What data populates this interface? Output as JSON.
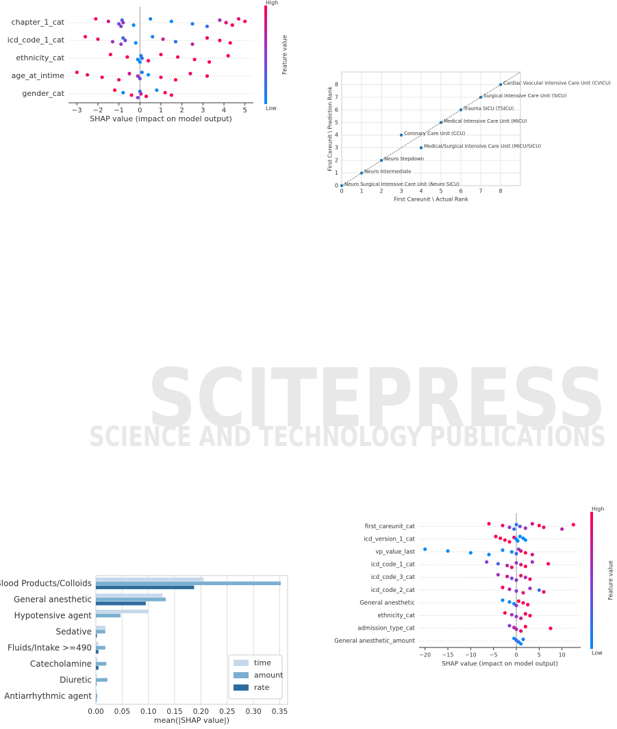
{
  "watermark": {
    "title": "SCITEPRESS",
    "subtitle": "SCIENCE AND TECHNOLOGY PUBLICATIONS"
  },
  "chart_data": [
    {
      "type": "beeswarm",
      "xlabel": "SHAP value (impact on model output)",
      "xlim": [
        -3.4,
        5.4
      ],
      "xticks": [
        {
          "value": -3,
          "label": "−3"
        },
        {
          "value": -2,
          "label": "−2"
        },
        {
          "value": -1,
          "label": "−1"
        },
        0,
        1,
        2,
        3,
        4,
        5
      ],
      "colors": {
        "low": "#008bfb",
        "high": "#ff0052"
      },
      "colorbar": {
        "high": "High",
        "low": "Low",
        "label": "Feature value"
      },
      "features": [
        {
          "name": "chapter_1_cat",
          "shap": [
            -2.1,
            -1.5,
            -1.0,
            -0.9,
            -0.85,
            -0.8,
            -0.3,
            0.5,
            1.5,
            2.5,
            3.2,
            3.8,
            4.1,
            4.4,
            4.7,
            5.0
          ],
          "feature_value": [
            1,
            0.8,
            0.4,
            0.5,
            0.3,
            0.6,
            0,
            0.1,
            0,
            0.1,
            0.2,
            0.6,
            0.9,
            1,
            0.9,
            1
          ]
        },
        {
          "name": "icd_code_1_cat",
          "shap": [
            -2.6,
            -2.0,
            -1.3,
            -0.9,
            -0.8,
            -0.7,
            -0.2,
            0.6,
            1.1,
            1.7,
            2.5,
            3.2,
            3.8,
            4.3
          ],
          "feature_value": [
            1,
            0.9,
            0.6,
            0.5,
            0.2,
            0.4,
            0,
            0.1,
            0.8,
            0.2,
            0.7,
            0.9,
            1,
            1
          ]
        },
        {
          "name": "ethnicity_cat",
          "shap": [
            -1.4,
            -0.6,
            -0.1,
            0,
            0.05,
            0.1,
            0.4,
            1.0,
            1.8,
            2.6,
            3.3,
            4.2
          ],
          "feature_value": [
            1,
            1,
            0,
            0,
            0.1,
            0.2,
            1,
            1,
            0.9,
            1,
            1,
            1
          ]
        },
        {
          "name": "age_at_intime",
          "shap": [
            -3.0,
            -2.5,
            -1.8,
            -1.0,
            -0.5,
            -0.1,
            0,
            0.1,
            0.4,
            1.0,
            1.7,
            2.4,
            3.2
          ],
          "feature_value": [
            1,
            0.9,
            1,
            0.9,
            0.8,
            0.6,
            0.4,
            0.1,
            0,
            0.9,
            1,
            0.9,
            1
          ]
        },
        {
          "name": "gender_cat",
          "shap": [
            -1.2,
            -0.8,
            -0.4,
            -0.1,
            0,
            0.05,
            0.3,
            0.8,
            1.2,
            1.5
          ],
          "feature_value": [
            1,
            0,
            1,
            0.5,
            0.2,
            0.7,
            1,
            0,
            1,
            1
          ]
        }
      ]
    },
    {
      "type": "scatter",
      "xlabel": "First Careunit \\ Actual Rank",
      "ylabel": "First Careunit \\ Prediction Rank",
      "xlim": [
        0,
        9
      ],
      "ylim": [
        0,
        9
      ],
      "xticks": [
        0,
        1,
        2,
        3,
        4,
        5,
        6,
        7,
        8
      ],
      "yticks": [
        0,
        1,
        2,
        3,
        4,
        5,
        6,
        7,
        8
      ],
      "grid": true,
      "color": "#1f77b4",
      "x": [
        8,
        7,
        6,
        5,
        3,
        4,
        2,
        1,
        0
      ],
      "values": [
        8,
        7,
        6,
        5,
        4,
        3,
        2,
        1,
        0
      ],
      "point_labels": [
        "Cardiac Vascular Intensive Care Unit (CVICU)",
        "Surgical Intensive Care Unit (SICU)",
        "Trauma SICU (TSICU)",
        "Medical Intensive Care Unit (MICU)",
        "Coronary Care Unit (CCU)",
        "Medical/Surgical Intensive Care Unit (MICU/SICU)",
        "Neuro Stepdown",
        "Neuro Intermediate",
        "Neuro Surgical Intensive Care Unit (Neuro SICU)"
      ]
    },
    {
      "type": "bar",
      "xlabel": "mean(|SHAP value|)",
      "xlim": [
        0,
        0.365
      ],
      "xticks": [
        {
          "value": 0,
          "label": "0.00"
        },
        0.05,
        {
          "value": 0.1,
          "label": "0.10"
        },
        0.15,
        {
          "value": 0.2,
          "label": "0.20"
        },
        0.25,
        {
          "value": 0.3,
          "label": "0.30"
        },
        0.35
      ],
      "grid": true,
      "legend": "lower right",
      "categories": [
        "Blood Products/Colloids",
        "General anesthetic",
        "Hypotensive agent",
        "Sedative",
        "Fluids/Intake >=490",
        "Catecholamine",
        "Diuretic",
        "Antiarrhythmic agent"
      ],
      "series": [
        {
          "name": "time",
          "color": "#c6d9ea",
          "values": [
            0.205,
            0.127,
            0.1,
            0.018,
            0.005,
            0.003,
            0.002,
            0.002
          ]
        },
        {
          "name": "amount",
          "color": "#7bafd0",
          "values": [
            0.352,
            0.133,
            0.047,
            0.018,
            0.018,
            0.02,
            0.022,
            0.003
          ]
        },
        {
          "name": "rate",
          "color": "#2f6c9e",
          "values": [
            0.187,
            0.095,
            0,
            0.002,
            0.005,
            0.005,
            0.001,
            0.001
          ]
        }
      ]
    },
    {
      "type": "beeswarm",
      "xlabel": "SHAP value (impact on model output)",
      "xlim": [
        -21.3,
        14.1
      ],
      "xticks": [
        {
          "value": -20,
          "label": "−20"
        },
        {
          "value": -15,
          "label": "−15"
        },
        {
          "value": -10,
          "label": "−10"
        },
        {
          "value": -5,
          "label": "−5"
        },
        0,
        5,
        10
      ],
      "colors": {
        "low": "#008bfb",
        "high": "#ff0052"
      },
      "colorbar": {
        "high": "High",
        "low": "Low",
        "label": "Feature value"
      },
      "features": [
        {
          "name": "first_careunit_cat",
          "shap": [
            -6,
            -3,
            -1.5,
            -0.5,
            0,
            0.8,
            2,
            3.5,
            5,
            6,
            10,
            12.5
          ],
          "feature_value": [
            1,
            0.9,
            0.5,
            0.2,
            0.1,
            0.4,
            0.6,
            0.8,
            1,
            0.9,
            0.7,
            1
          ]
        },
        {
          "name": "icd_version_1_cat",
          "shap": [
            -4.5,
            -3.5,
            -2.5,
            -1.5,
            -0.5,
            0,
            0.3,
            0.8,
            1.5,
            2.0
          ],
          "feature_value": [
            1,
            1,
            1,
            1,
            0.9,
            0,
            0,
            0,
            0,
            0
          ]
        },
        {
          "name": "vp_value_last",
          "shap": [
            -20,
            -15,
            -10,
            -6,
            -3,
            -1,
            0,
            0.5,
            1,
            2,
            3.5
          ],
          "feature_value": [
            0,
            0,
            0,
            0,
            0,
            0,
            0.2,
            0.5,
            0.9,
            1,
            0.8
          ]
        },
        {
          "name": "icd_code_1_cat",
          "shap": [
            -6.5,
            -4,
            -2,
            -1,
            0,
            1,
            2,
            3.5,
            7
          ],
          "feature_value": [
            0.5,
            0.3,
            0.7,
            0.9,
            0.5,
            0.8,
            1,
            0.6,
            1
          ]
        },
        {
          "name": "icd_code_3_cat",
          "shap": [
            -4,
            -2,
            -1,
            0,
            1,
            2,
            3
          ],
          "feature_value": [
            0.6,
            0.8,
            0.4,
            0.5,
            0.9,
            0.7,
            1
          ]
        },
        {
          "name": "icd_code_2_cat",
          "shap": [
            -3,
            -1.5,
            0,
            1.5,
            3,
            5,
            6
          ],
          "feature_value": [
            1,
            0.7,
            0.5,
            0.8,
            0.6,
            0.2,
            1
          ]
        },
        {
          "name": "General anesthetic",
          "shap": [
            -3,
            -1.5,
            -0.5,
            0,
            0.5,
            1.5,
            2.5
          ],
          "feature_value": [
            0,
            0,
            0,
            0.5,
            1,
            1,
            1
          ]
        },
        {
          "name": "ethnicity_cat",
          "shap": [
            -2.5,
            -1,
            0,
            1,
            2,
            3
          ],
          "feature_value": [
            1,
            0.6,
            0.5,
            0.8,
            1,
            1
          ]
        },
        {
          "name": "admission_type_cat",
          "shap": [
            -1.5,
            -0.5,
            0,
            1,
            2,
            7.5
          ],
          "feature_value": [
            0.5,
            0.7,
            0.6,
            0.9,
            1,
            1
          ]
        },
        {
          "name": "General anesthetic_amount",
          "shap": [
            -0.5,
            0,
            0.5,
            1,
            1.5
          ],
          "feature_value": [
            0,
            0.2,
            0.1,
            0,
            0.1
          ]
        }
      ]
    }
  ]
}
